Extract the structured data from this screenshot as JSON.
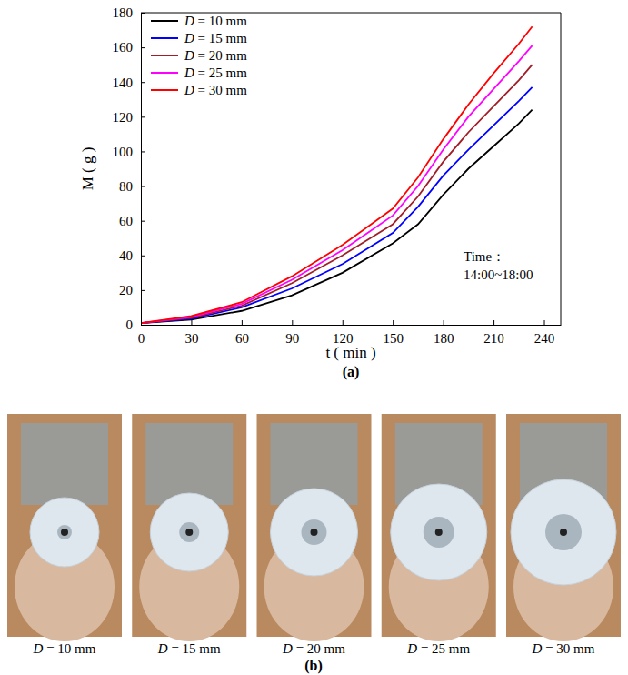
{
  "chart_data": {
    "type": "line",
    "x_label": "t ( min )",
    "y_label": "M ( g )",
    "annotations": [
      "Time：",
      "14:00~18:00"
    ],
    "x": [
      0,
      30,
      60,
      90,
      120,
      150,
      165,
      180,
      195,
      210,
      225,
      233
    ],
    "series": [
      {
        "name": "D = 10 mm",
        "color": "#000000",
        "values": [
          1,
          3,
          8,
          17,
          30,
          47,
          58,
          75,
          90,
          103,
          116,
          124
        ]
      },
      {
        "name": "D = 15 mm",
        "color": "#0000ff",
        "values": [
          1,
          3.5,
          10,
          21,
          35,
          53,
          68,
          86,
          101,
          115,
          129,
          137
        ]
      },
      {
        "name": "D = 20 mm",
        "color": "#a01e28",
        "values": [
          1,
          4,
          11,
          24,
          40,
          58,
          74,
          94,
          111,
          126,
          141,
          150
        ]
      },
      {
        "name": "D = 25 mm",
        "color": "#ff00ff",
        "values": [
          1,
          4.5,
          12,
          26,
          43,
          63,
          80,
          101,
          120,
          136,
          152,
          161
        ]
      },
      {
        "name": "D = 30 mm",
        "color": "#ff0000",
        "values": [
          1,
          5,
          13,
          28,
          46,
          67,
          85,
          107,
          127,
          145,
          162,
          172
        ]
      }
    ],
    "xlim": [
      0,
      250
    ],
    "xticks": [
      0,
      30,
      60,
      90,
      120,
      150,
      180,
      210,
      240
    ],
    "ylim": [
      0,
      180
    ],
    "yticks": [
      0,
      20,
      40,
      60,
      80,
      100,
      120,
      140,
      160,
      180
    ],
    "legend": "upper left",
    "grid": false
  },
  "figure": {
    "panel_labels": [
      "(a)",
      "(b)"
    ],
    "photo_captions": [
      "D = 10 mm",
      "D = 15 mm",
      "D = 20 mm",
      "D = 25 mm",
      "D = 30 mm"
    ]
  }
}
